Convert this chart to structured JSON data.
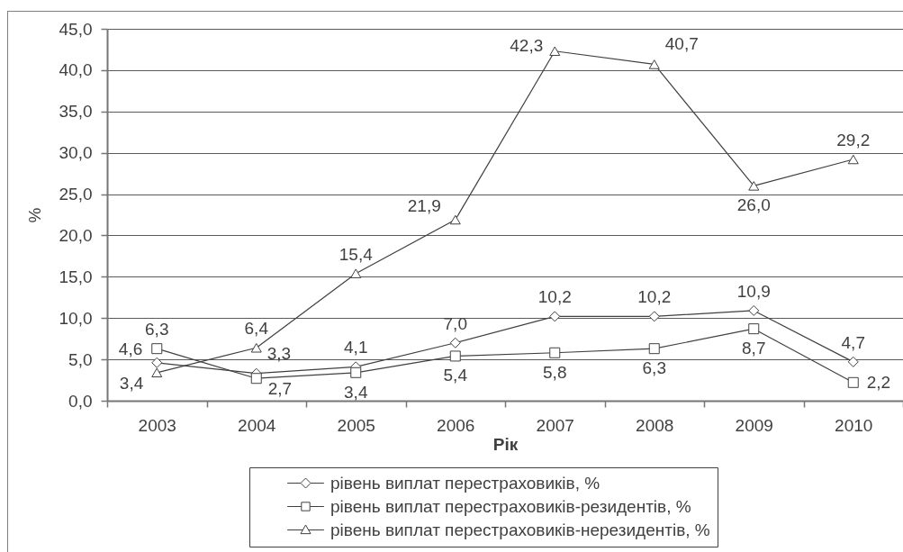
{
  "chart_data": {
    "type": "line",
    "categories": [
      "2003",
      "2004",
      "2005",
      "2006",
      "2007",
      "2008",
      "2009",
      "2010"
    ],
    "xlabel": "Рік",
    "ylabel": "%",
    "ylim": [
      0,
      45
    ],
    "yticks": [
      {
        "value": 0,
        "label": "0,0"
      },
      {
        "value": 5,
        "label": "5,0"
      },
      {
        "value": 10,
        "label": "10,0"
      },
      {
        "value": 15,
        "label": "15,0"
      },
      {
        "value": 20,
        "label": "20,0"
      },
      {
        "value": 25,
        "label": "25,0"
      },
      {
        "value": 30,
        "label": "30,0"
      },
      {
        "value": 35,
        "label": "35,0"
      },
      {
        "value": 40,
        "label": "40,0"
      },
      {
        "value": 45,
        "label": "45,0"
      }
    ],
    "grid": "y",
    "legend": "bottom",
    "line_style": "solid",
    "series": [
      {
        "name": "рівень виплат перестраховиків, %",
        "color": "#404040",
        "marker": "diamond",
        "values": [
          4.6,
          3.3,
          4.1,
          7.0,
          10.2,
          10.2,
          10.9,
          4.7
        ],
        "value_labels": [
          "4,6",
          "3,3",
          "4,1",
          "7,0",
          "10,2",
          "10,2",
          "10,9",
          "4,7"
        ]
      },
      {
        "name": "рівень виплат перестраховиків-резидентів, %",
        "color": "#404040",
        "marker": "square",
        "values": [
          6.3,
          2.7,
          3.4,
          5.4,
          5.8,
          6.3,
          8.7,
          2.2
        ],
        "value_labels": [
          "6,3",
          "2,7",
          "3,4",
          "5,4",
          "5,8",
          "6,3",
          "8,7",
          "2,2"
        ]
      },
      {
        "name": "рівень виплат перестраховиків-нерезидентів, %",
        "color": "#404040",
        "marker": "triangle",
        "values": [
          3.4,
          6.4,
          15.4,
          21.9,
          42.3,
          40.7,
          26.0,
          29.2
        ],
        "value_labels": [
          "3,4",
          "6,4",
          "15,4",
          "21,9",
          "42,3",
          "40,7",
          "26,0",
          "29,2"
        ]
      }
    ]
  }
}
